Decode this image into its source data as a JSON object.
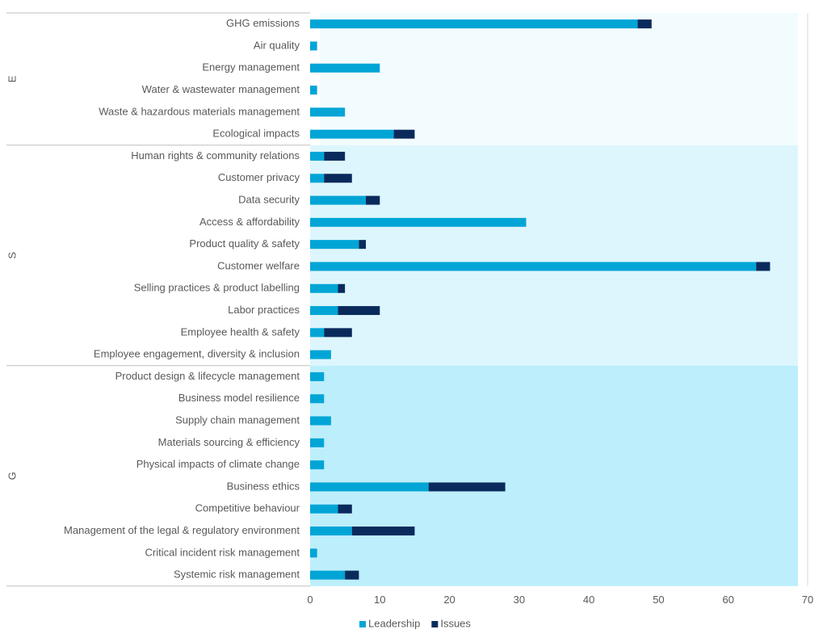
{
  "chart_data": {
    "type": "bar",
    "orientation": "horizontal",
    "stacked": true,
    "groups": [
      {
        "label": "E",
        "categories": [
          "GHG emissions",
          "Air quality",
          "Energy management",
          "Water & wastewater management",
          "Waste & hazardous materials management",
          "Ecological impacts"
        ]
      },
      {
        "label": "S",
        "categories": [
          "Human rights & community relations",
          "Customer privacy",
          "Data security",
          "Access & affordability",
          "Product quality & safety",
          "Customer welfare",
          "Selling practices & product labelling",
          "Labor practices",
          "Employee health & safety",
          "Employee engagement, diversity & inclusion"
        ]
      },
      {
        "label": "G",
        "categories": [
          "Product design & lifecycle management",
          "Business model resilience",
          "Supply chain management",
          "Materials sourcing & efficiency",
          "Physical impacts of climate change",
          "Business ethics",
          "Competitive behaviour",
          "Management of the legal & regulatory environment",
          "Critical incident risk management",
          "Systemic risk management"
        ]
      }
    ],
    "categories": [
      "GHG emissions",
      "Air quality",
      "Energy management",
      "Water & wastewater management",
      "Waste & hazardous materials management",
      "Ecological impacts",
      "Human rights & community relations",
      "Customer privacy",
      "Data security",
      "Access & affordability",
      "Product quality & safety",
      "Customer welfare",
      "Selling practices & product labelling",
      "Labor practices",
      "Employee health & safety",
      "Employee engagement, diversity & inclusion",
      "Product design & lifecycle management",
      "Business model resilience",
      "Supply chain management",
      "Materials sourcing & efficiency",
      "Physical impacts of climate change",
      "Business ethics",
      "Competitive behaviour",
      "Management of the legal & regulatory environment",
      "Critical incident risk management",
      "Systemic risk management"
    ],
    "series": [
      {
        "name": "Leadership",
        "color": "#00A5D6",
        "values": [
          47,
          1,
          10,
          1,
          5,
          12,
          2,
          2,
          8,
          31,
          7,
          64,
          4,
          4,
          2,
          3,
          2,
          2,
          3,
          2,
          2,
          17,
          4,
          6,
          1,
          5
        ]
      },
      {
        "name": "Issues",
        "color": "#0B2A5C",
        "values": [
          2,
          0,
          0,
          0,
          0,
          3,
          3,
          4,
          2,
          0,
          1,
          2,
          1,
          6,
          4,
          0,
          0,
          0,
          0,
          0,
          0,
          11,
          2,
          9,
          0,
          2
        ]
      }
    ],
    "xlim": [
      0,
      70
    ],
    "xticks": [
      0,
      10,
      20,
      30,
      40,
      50,
      60,
      70
    ],
    "group_band_colors": [
      "#F2FBFE",
      "#DDF6FD",
      "#BDEEFB"
    ],
    "legend_position": "bottom",
    "grid": false
  }
}
